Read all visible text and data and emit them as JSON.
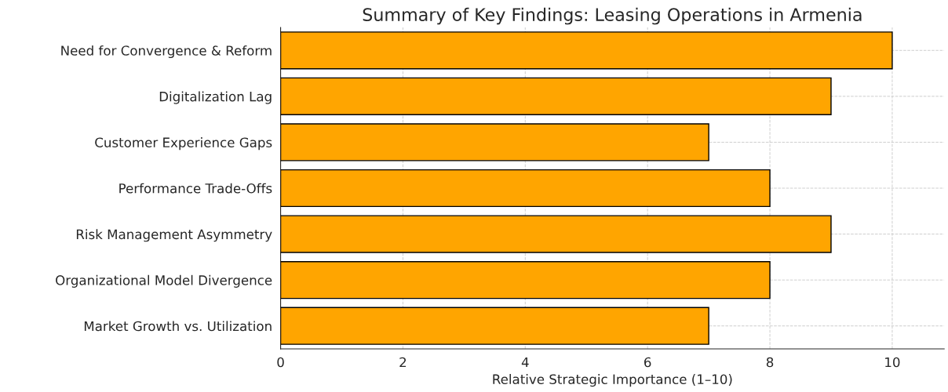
{
  "chart_data": {
    "type": "bar",
    "orientation": "horizontal",
    "title": "Summary of Key Findings: Leasing Operations in Armenia",
    "xlabel": "Relative Strategic Importance (1–10)",
    "categories": [
      "Need for Convergence & Reform",
      "Digitalization Lag",
      "Customer Experience Gaps",
      "Performance Trade-Offs",
      "Risk Management Asymmetry",
      "Organizational Model Divergence",
      "Market Growth vs. Utilization"
    ],
    "values": [
      10,
      9,
      7,
      8,
      9,
      8,
      7
    ],
    "color": "#ffa500",
    "xlim": [
      0,
      10.85
    ],
    "xticks": [
      0,
      2,
      4,
      6,
      8,
      10
    ],
    "grid": true
  }
}
